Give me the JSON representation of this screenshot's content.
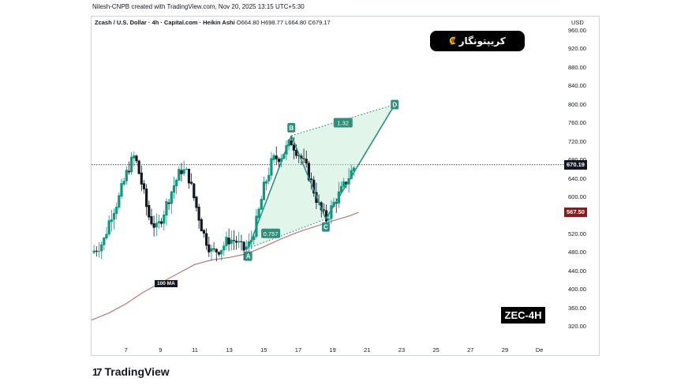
{
  "header": {
    "credit": "Nilesh-CNPB created with TradingView.com, Nov 20, 2025 13:15 UTC+5:30"
  },
  "legend": {
    "symbol": "Zcash / U.S. Dollar · 4h · Capital.com · Heikin Ashi",
    "open": "O664.80",
    "high": "H698.77",
    "low": "L664.80",
    "close": "C679.17"
  },
  "brand_badge": {
    "text": "کریپتونگار",
    "logo": "₡"
  },
  "currency": "USD",
  "tags": {
    "last_price": "670.19",
    "last_price_color": "#131722",
    "ma_price": "567.50",
    "ma_color": "#8b1a1a",
    "ma_label": "100 MA"
  },
  "timeframe_badge": "ZEC-4H",
  "footer": {
    "logo_mark": "17",
    "logo_text": "TradingView"
  },
  "colors": {
    "up": "#089981",
    "down": "#131722",
    "pattern": "#2f8f7b",
    "pattern_fill": "#c9ecd9",
    "ma": "#b57a7a"
  },
  "chart_data": {
    "type": "candlestick",
    "title": "Zcash / U.S. Dollar · 4h · Capital.com · Heikin Ashi",
    "ylabel": "USD",
    "ylim": [
      290,
      990
    ],
    "yticks": [
      "960.00",
      "920.00",
      "880.00",
      "840.00",
      "800.00",
      "760.00",
      "720.00",
      "680.00",
      "640.00",
      "600.00",
      "560.00",
      "520.00",
      "480.00",
      "440.00",
      "400.00",
      "360.00",
      "320.00"
    ],
    "xlim": [
      5.0,
      32.3
    ],
    "xticks": [
      {
        "x": 7,
        "label": "7"
      },
      {
        "x": 9,
        "label": "9"
      },
      {
        "x": 11,
        "label": "11"
      },
      {
        "x": 13,
        "label": "13"
      },
      {
        "x": 15,
        "label": "15"
      },
      {
        "x": 17,
        "label": "17"
      },
      {
        "x": 19,
        "label": "19"
      },
      {
        "x": 21,
        "label": "21"
      },
      {
        "x": 23,
        "label": "23"
      },
      {
        "x": 25,
        "label": "25"
      },
      {
        "x": 27,
        "label": "27"
      },
      {
        "x": 29,
        "label": "29"
      },
      {
        "x": 31,
        "label": "De"
      }
    ],
    "candles_waypoints": [
      {
        "x": 5.0,
        "p": 480
      },
      {
        "x": 5.7,
        "p": 505
      },
      {
        "x": 6.1,
        "p": 560
      },
      {
        "x": 6.6,
        "p": 600
      },
      {
        "x": 7.1,
        "p": 660
      },
      {
        "x": 7.5,
        "p": 690
      },
      {
        "x": 7.9,
        "p": 630
      },
      {
        "x": 8.3,
        "p": 560
      },
      {
        "x": 8.8,
        "p": 530
      },
      {
        "x": 9.2,
        "p": 570
      },
      {
        "x": 9.7,
        "p": 620
      },
      {
        "x": 10.2,
        "p": 660
      },
      {
        "x": 10.6,
        "p": 650
      },
      {
        "x": 11.0,
        "p": 590
      },
      {
        "x": 11.5,
        "p": 520
      },
      {
        "x": 12.0,
        "p": 480
      },
      {
        "x": 12.5,
        "p": 490
      },
      {
        "x": 13.0,
        "p": 510
      },
      {
        "x": 13.4,
        "p": 505
      },
      {
        "x": 13.8,
        "p": 485
      },
      {
        "x": 14.2,
        "p": 500
      },
      {
        "x": 14.6,
        "p": 550
      },
      {
        "x": 15.0,
        "p": 620
      },
      {
        "x": 15.5,
        "p": 680
      },
      {
        "x": 16.0,
        "p": 690
      },
      {
        "x": 16.6,
        "p": 720
      },
      {
        "x": 17.1,
        "p": 690
      },
      {
        "x": 17.6,
        "p": 650
      },
      {
        "x": 18.2,
        "p": 580
      },
      {
        "x": 18.6,
        "p": 550
      },
      {
        "x": 19.1,
        "p": 590
      },
      {
        "x": 19.6,
        "p": 620
      },
      {
        "x": 20.0,
        "p": 650
      },
      {
        "x": 20.3,
        "p": 670
      }
    ],
    "series": [
      {
        "name": "100 MA",
        "type": "line",
        "points": [
          {
            "x": 5.0,
            "y": 335
          },
          {
            "x": 6.0,
            "y": 350
          },
          {
            "x": 7.0,
            "y": 370
          },
          {
            "x": 8.0,
            "y": 395
          },
          {
            "x": 9.0,
            "y": 415
          },
          {
            "x": 10.0,
            "y": 435
          },
          {
            "x": 11.0,
            "y": 455
          },
          {
            "x": 12.0,
            "y": 465
          },
          {
            "x": 13.0,
            "y": 470
          },
          {
            "x": 14.0,
            "y": 478
          },
          {
            "x": 15.0,
            "y": 493
          },
          {
            "x": 16.0,
            "y": 510
          },
          {
            "x": 17.0,
            "y": 525
          },
          {
            "x": 18.0,
            "y": 537
          },
          {
            "x": 19.0,
            "y": 549
          },
          {
            "x": 20.0,
            "y": 560
          },
          {
            "x": 20.5,
            "y": 567.5
          }
        ]
      }
    ],
    "pattern": {
      "name": "ABCD",
      "points": [
        {
          "label": "A",
          "x": 14.1,
          "y": 490
        },
        {
          "label": "B",
          "x": 16.6,
          "y": 733
        },
        {
          "label": "C",
          "x": 18.6,
          "y": 553
        },
        {
          "label": "D",
          "x": 22.6,
          "y": 800
        }
      ],
      "ratios": [
        {
          "label": "0.757",
          "x": 15.4,
          "y": 522
        },
        {
          "label": "1.32",
          "x": 19.6,
          "y": 761
        }
      ]
    },
    "last_price_line": 670.19
  }
}
